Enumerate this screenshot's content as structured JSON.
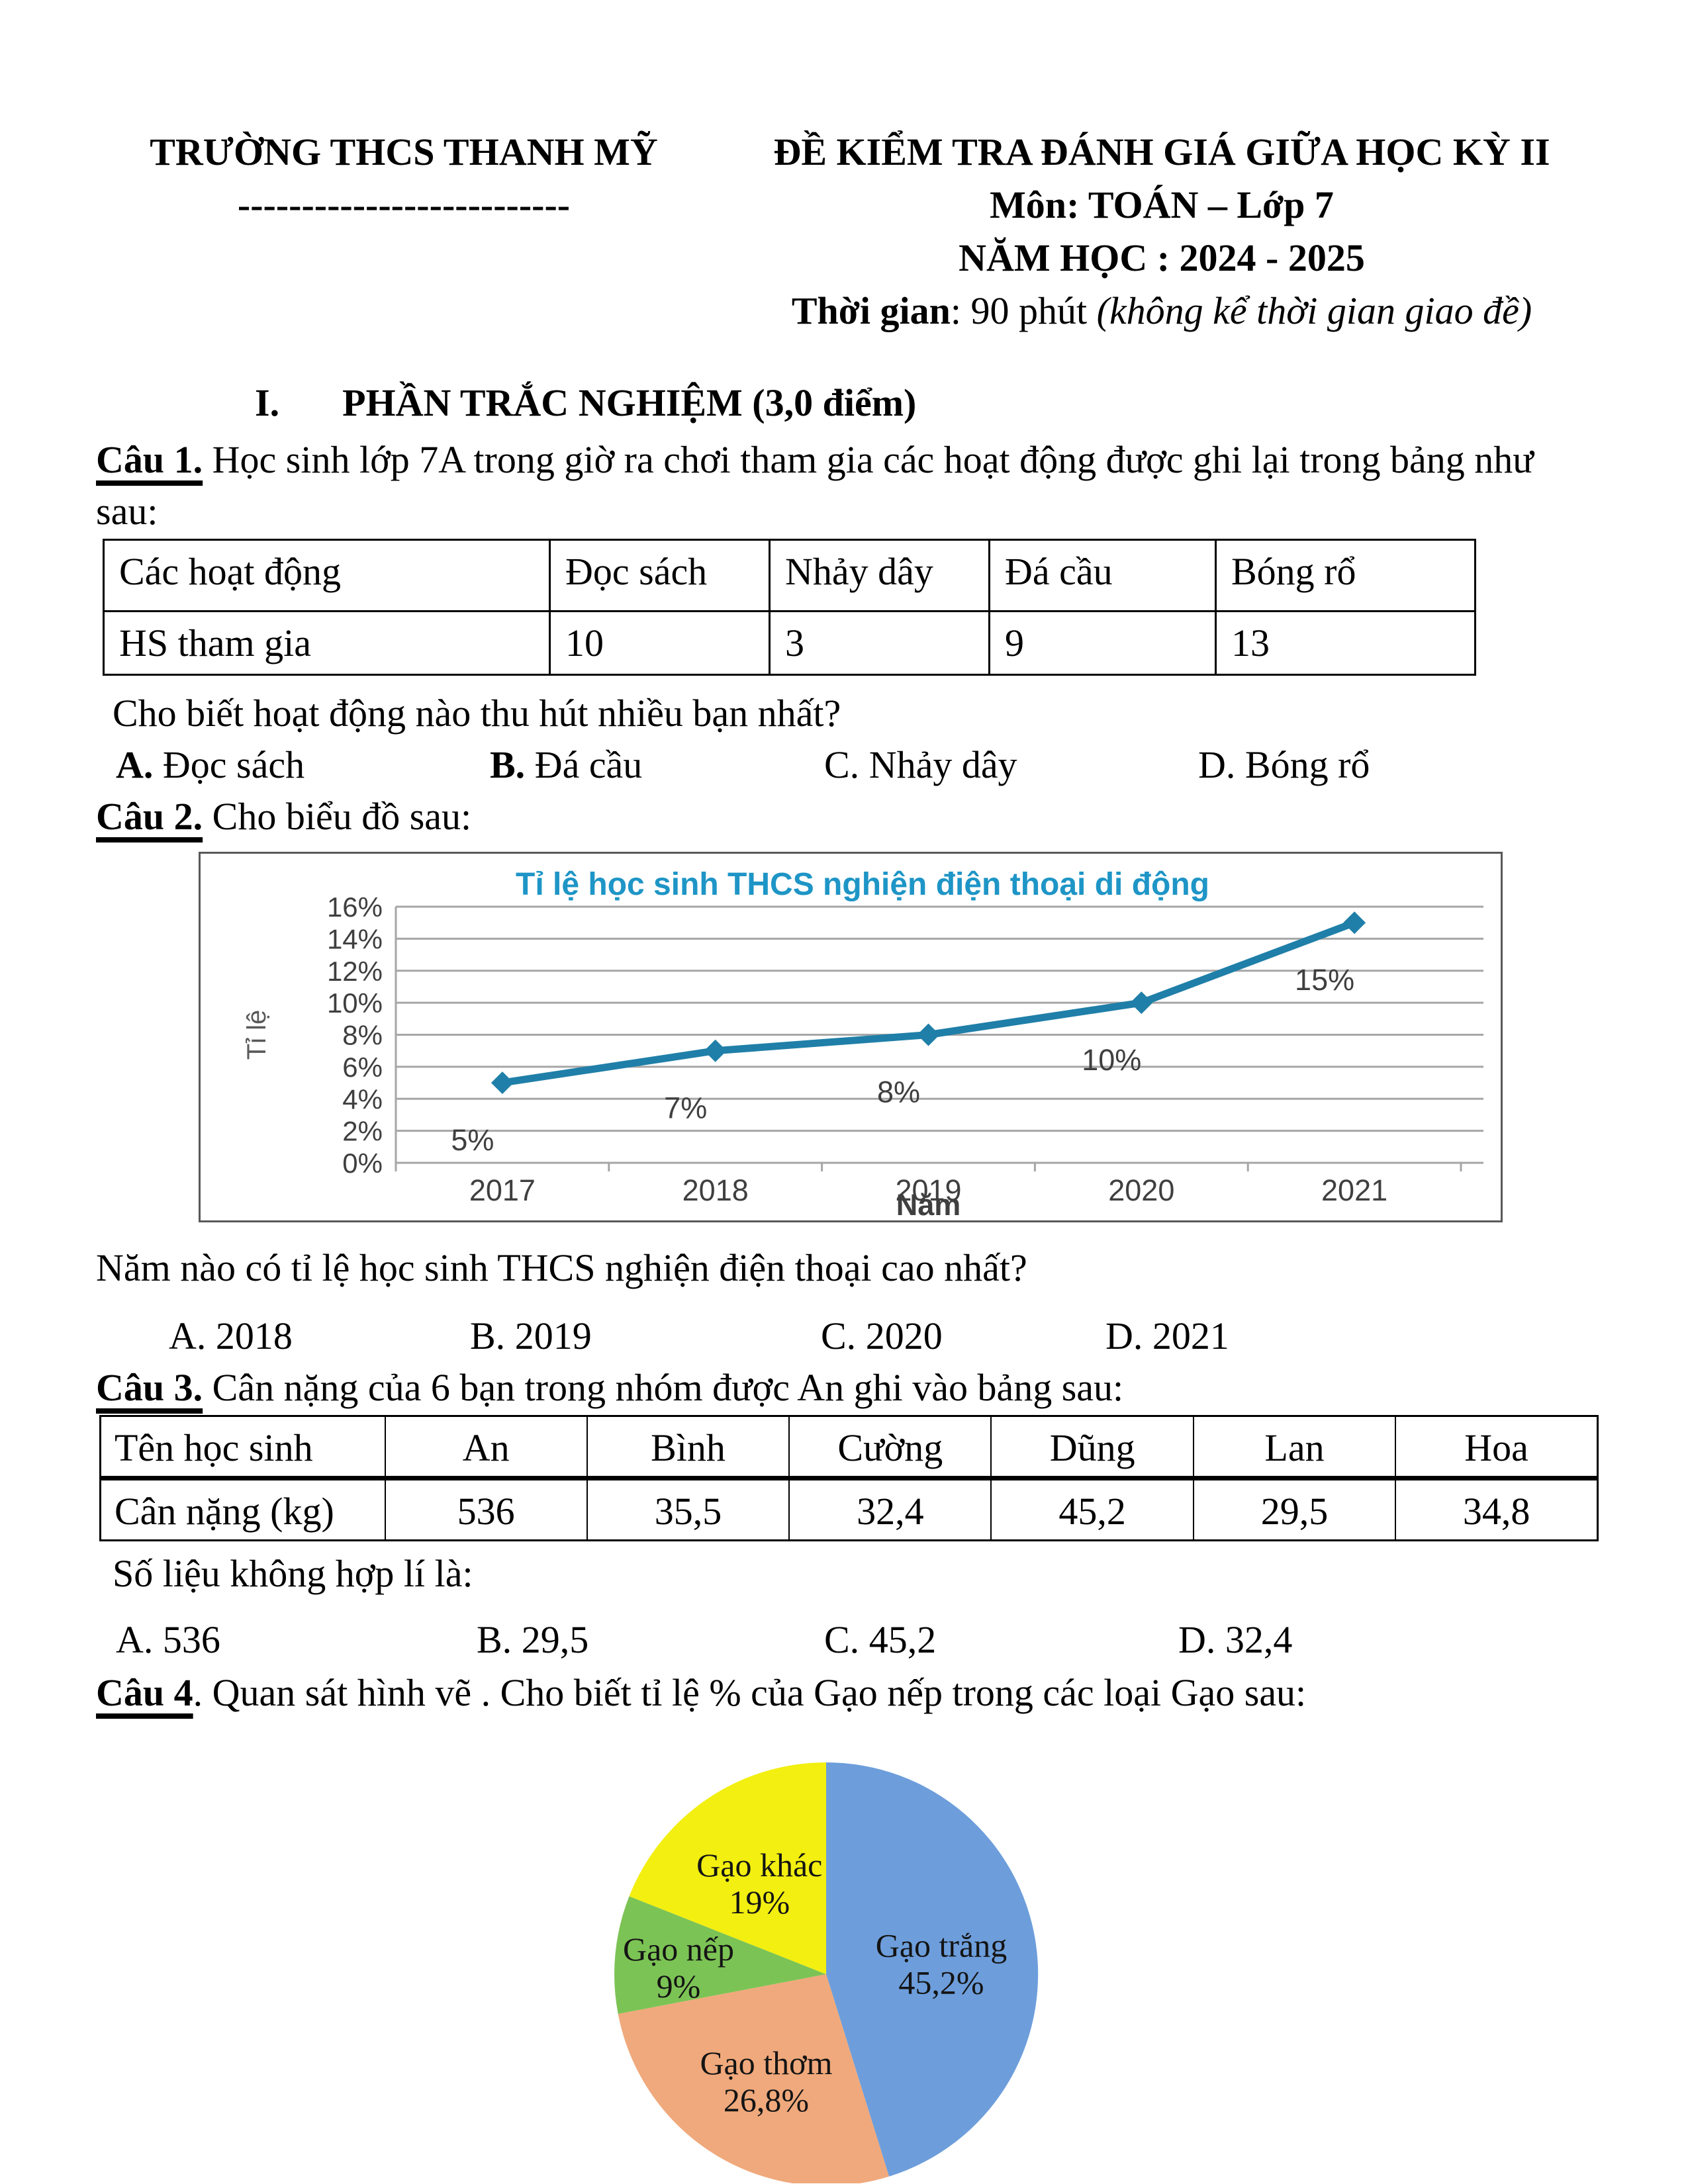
{
  "header": {
    "school": "TRƯỜNG THCS THANH MỸ",
    "school_rule": "--------------------------",
    "exam_title": "ĐỀ KIỂM TRA ĐÁNH GIÁ GIỮA HỌC KỲ II",
    "subject": "Môn: TOÁN – Lớp 7",
    "school_year": "NĂM HỌC : 2024 - 2025",
    "duration_label": "Thời gian",
    "duration_value": ": 90 phút ",
    "duration_note": "(không kể thời gian giao đề)"
  },
  "section1": {
    "numeral": "I.",
    "title": "PHẦN TRẮC NGHIỆM (3,0 điểm)"
  },
  "q1": {
    "label": "Câu 1.",
    "intro": " Học sinh lớp 7A trong giờ ra chơi tham gia các hoạt động được ghi lại trong bảng như sau:",
    "table": {
      "headers": [
        "Các hoạt động",
        "Đọc sách",
        "Nhảy dây",
        "Đá cầu",
        "Bóng rổ"
      ],
      "row_label": "HS tham gia",
      "values": [
        "10",
        "3",
        "9",
        "13"
      ]
    },
    "question": "Cho biết hoạt động nào thu hút nhiều bạn nhất?",
    "options": [
      {
        "letter": "A.",
        "text": " Đọc sách"
      },
      {
        "letter": "B.",
        "text": " Đá cầu"
      },
      {
        "letter": "C.",
        "text": " Nhảy dây"
      },
      {
        "letter": "D.",
        "text": " Bóng rổ"
      }
    ]
  },
  "q2": {
    "label": "Câu 2.",
    "intro": " Cho biểu đồ sau:",
    "question": "Năm nào có tỉ lệ học sinh THCS nghiện điện thoại cao nhất?",
    "options": [
      {
        "letter": "A.",
        "text": " 2018"
      },
      {
        "letter": "B.",
        "text": " 2019"
      },
      {
        "letter": "C.",
        "text": " 2020"
      },
      {
        "letter": "D.",
        "text": " 2021"
      }
    ]
  },
  "q3": {
    "label": "Câu 3.",
    "intro": " Cân nặng của 6 bạn trong nhóm được An ghi vào bảng sau:",
    "table": {
      "headers": [
        "Tên học sinh",
        "An",
        "Bình",
        "Cường",
        "Dũng",
        "Lan",
        "Hoa"
      ],
      "row_label": "Cân nặng (kg)",
      "values": [
        "536",
        "35,5",
        "32,4",
        "45,2",
        "29,5",
        "34,8"
      ]
    },
    "question": "Số liệu không hợp lí là:",
    "options": [
      {
        "letter": "A.",
        "text": " 536"
      },
      {
        "letter": "B.",
        "text": " 29,5"
      },
      {
        "letter": "C.",
        "text": " 45,2"
      },
      {
        "letter": "D.",
        "text": " 32,4"
      }
    ]
  },
  "q4": {
    "label": "Câu 4",
    "intro": ". Quan sát hình vẽ . Cho biết tỉ lệ % của Gạo nếp trong các loại Gạo sau:"
  },
  "chart_data": [
    {
      "type": "line",
      "title": "Tỉ lệ học sinh THCS nghiện điện thoại di động",
      "categories": [
        "2017",
        "2018",
        "2019",
        "2020",
        "2021"
      ],
      "values": [
        5,
        7,
        8,
        10,
        15
      ],
      "point_labels": [
        "5%",
        "7%",
        "8%",
        "10%",
        "15%"
      ],
      "xlabel": "Năm",
      "ylabel": "Tỉ lệ",
      "ylim": [
        0,
        16
      ],
      "ytick_step": 2,
      "ytick_suffix": "%",
      "grid": true,
      "legend": "none",
      "colors": {
        "title": "#1E95C6",
        "line": "#1F7FA8",
        "grid": "#A6A6A6",
        "tick_text": "#3F3F3F",
        "axis_title": "#595959"
      }
    },
    {
      "type": "pie",
      "start_angle_deg": 0,
      "direction": "clockwise",
      "slices": [
        {
          "label": "Gạo trắng",
          "pct_label": "45,2%",
          "value": 45.2,
          "color": "#6D9EDB"
        },
        {
          "label": "Gạo thơm",
          "pct_label": "26,8%",
          "value": 26.8,
          "color": "#F0A97C"
        },
        {
          "label": "Gạo nếp",
          "pct_label": "9%",
          "value": 9,
          "color": "#7CC355"
        },
        {
          "label": "Gạo khác",
          "pct_label": "19%",
          "value": 19,
          "color": "#F2EF11"
        }
      ]
    }
  ]
}
